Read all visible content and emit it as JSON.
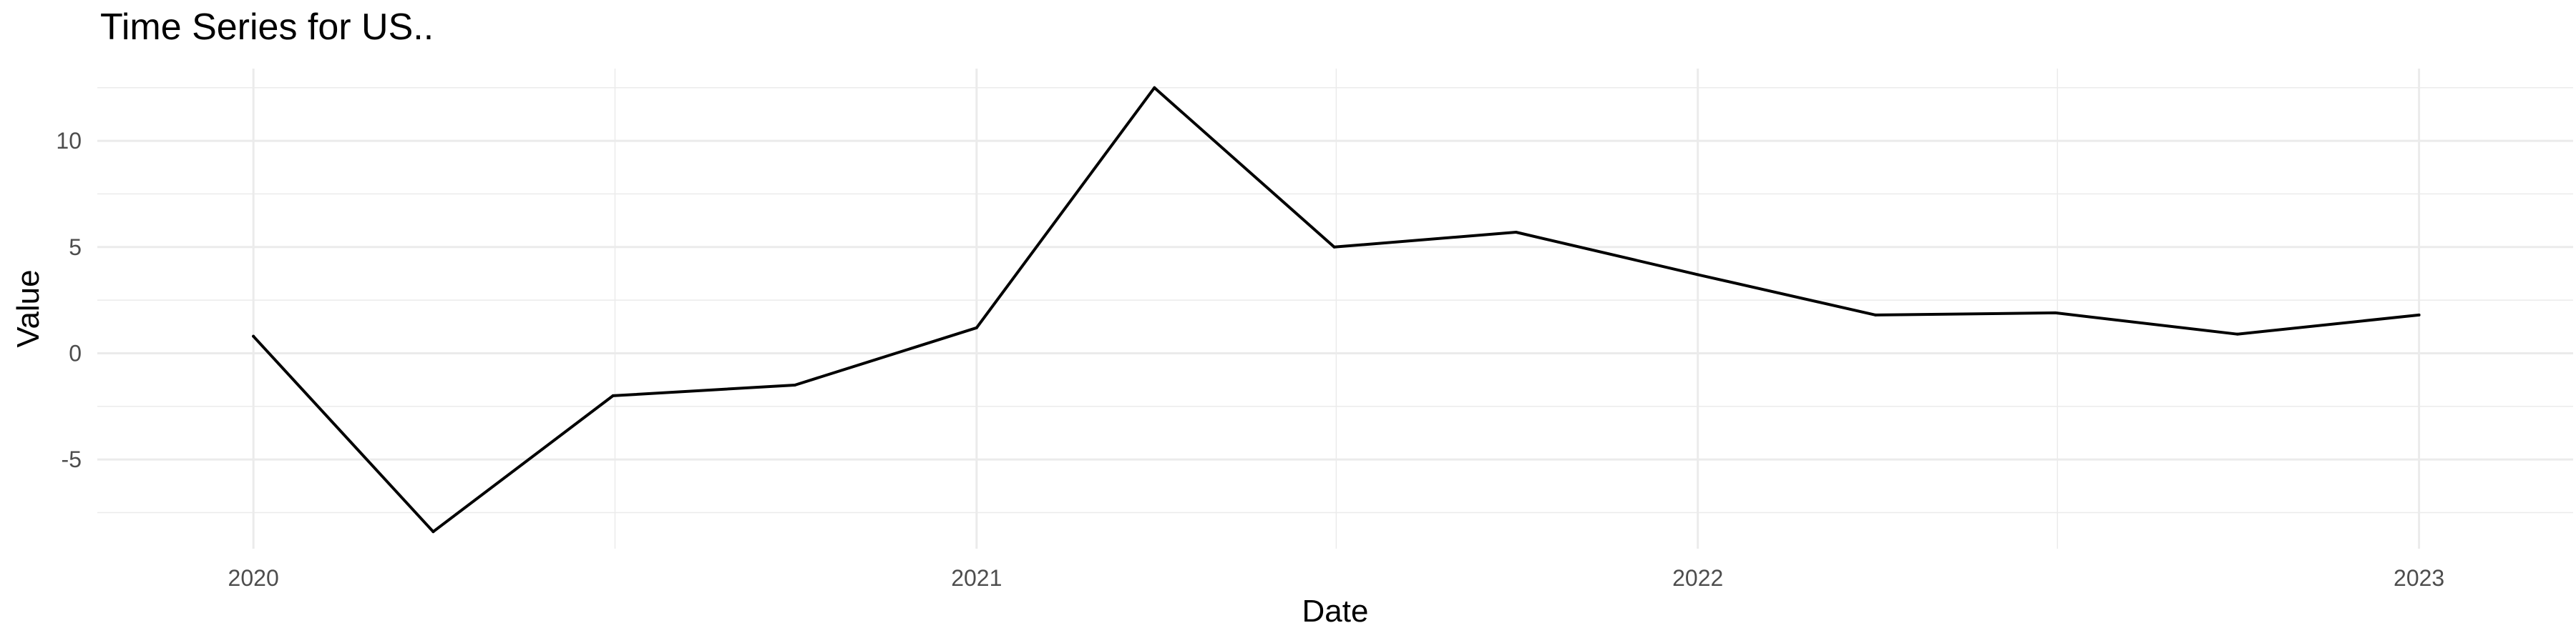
{
  "chart_data": {
    "type": "line",
    "title": "Time Series for US..",
    "xlabel": "Date",
    "ylabel": "Value",
    "x_tick_labels": [
      "2020",
      "2021",
      "2022",
      "2023"
    ],
    "y_tick_labels": [
      "-5",
      "0",
      "5",
      "10"
    ],
    "xlim": [
      "2019-10-14",
      "2023-03-20"
    ],
    "ylim": [
      -9.2,
      13.4
    ],
    "grid": true,
    "legend": "none",
    "series": [
      {
        "color": "#000000",
        "points": [
          {
            "x": "2020-01-01",
            "y": 0.8
          },
          {
            "x": "2020-04-01",
            "y": -8.4
          },
          {
            "x": "2020-07-01",
            "y": -2.0
          },
          {
            "x": "2020-10-01",
            "y": -1.5
          },
          {
            "x": "2021-01-01",
            "y": 1.2
          },
          {
            "x": "2021-04-01",
            "y": 12.5
          },
          {
            "x": "2021-07-01",
            "y": 5.0
          },
          {
            "x": "2021-10-01",
            "y": 5.7
          },
          {
            "x": "2022-01-01",
            "y": 3.7
          },
          {
            "x": "2022-04-01",
            "y": 1.8
          },
          {
            "x": "2022-07-01",
            "y": 1.9
          },
          {
            "x": "2022-10-01",
            "y": 0.9
          },
          {
            "x": "2023-01-01",
            "y": 1.8
          }
        ]
      }
    ]
  }
}
